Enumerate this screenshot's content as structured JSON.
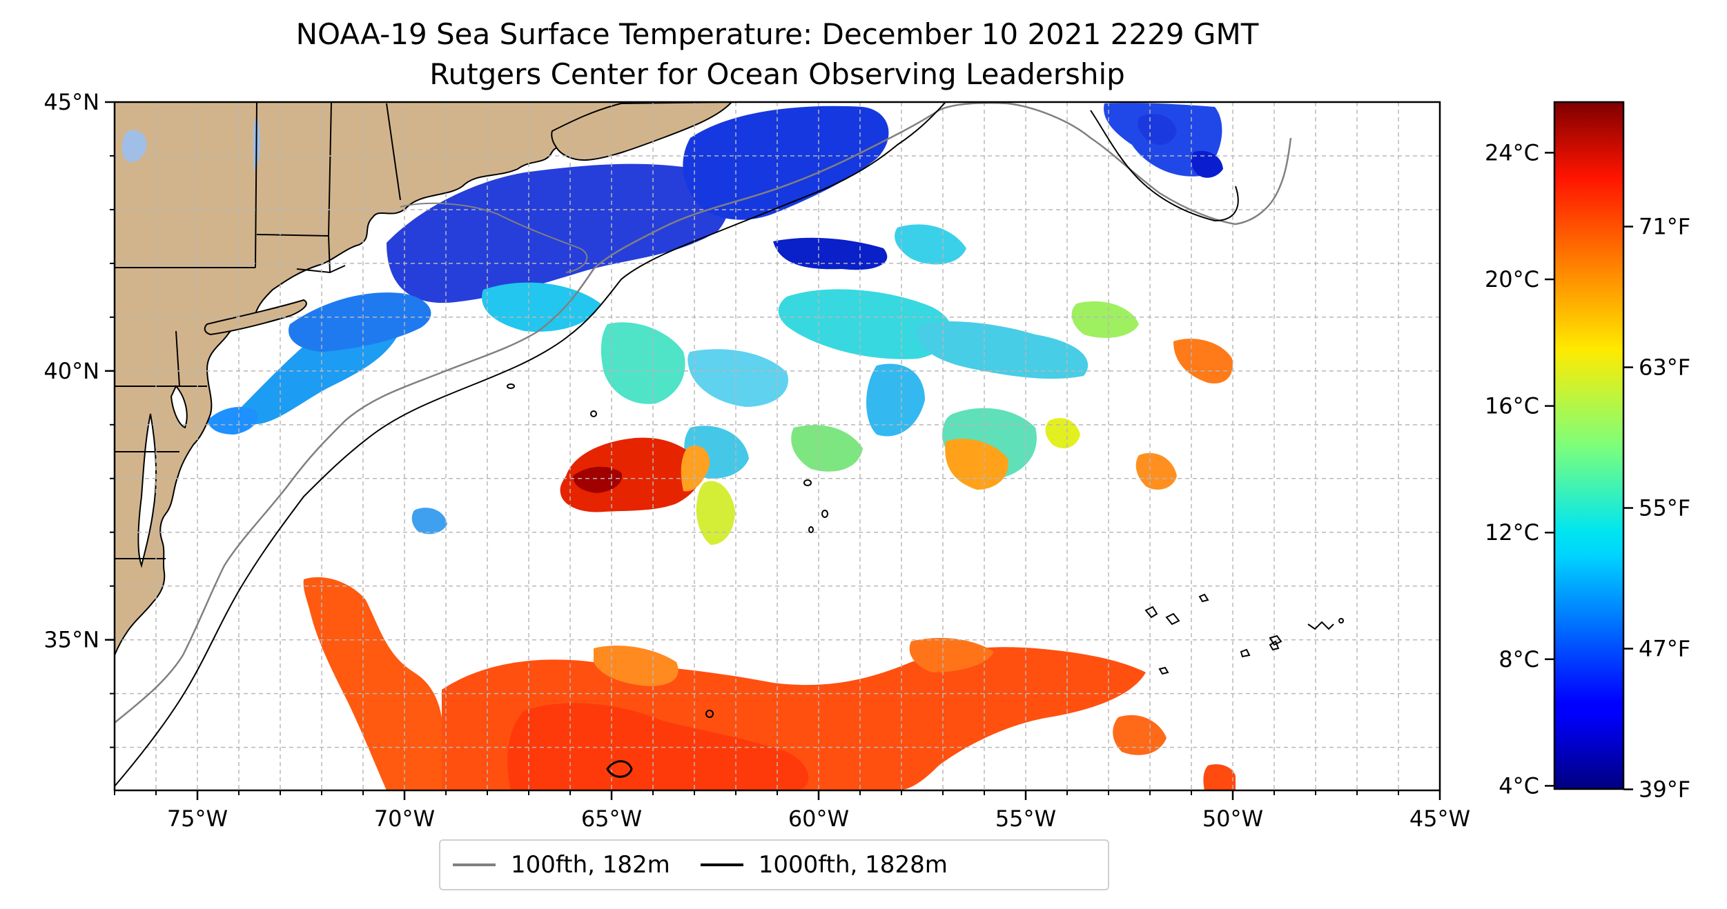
{
  "figure": {
    "title_line1": "NOAA-19 Sea Surface Temperature: December 10 2021 2229 GMT",
    "title_line2": "Rutgers Center for Ocean Observing Leadership"
  },
  "map": {
    "lon_range": [
      -77,
      -45
    ],
    "lat_range": [
      32.2,
      45
    ],
    "land_color": "#d2b48c",
    "lake_color": "#9fbfe8",
    "coast_color": "#000000",
    "grid_color": "#b8b8b8",
    "x_ticks": [
      {
        "value": -75,
        "label": "75°W"
      },
      {
        "value": -70,
        "label": "70°W"
      },
      {
        "value": -65,
        "label": "65°W"
      },
      {
        "value": -60,
        "label": "60°W"
      },
      {
        "value": -55,
        "label": "55°W"
      },
      {
        "value": -50,
        "label": "50°W"
      },
      {
        "value": -45,
        "label": "45°W"
      }
    ],
    "y_ticks": [
      {
        "value": 45,
        "label": "45°N"
      },
      {
        "value": 40,
        "label": "40°N"
      },
      {
        "value": 35,
        "label": "35°N"
      }
    ]
  },
  "legend": {
    "items": [
      {
        "label": "100fth, 182m",
        "color": "#808080"
      },
      {
        "label": "1000fth, 1828m",
        "color": "#000000"
      }
    ]
  },
  "colorbar": {
    "colormap": "jet",
    "range_c": [
      3.9,
      25.6
    ],
    "celsius_ticks": [
      {
        "value": 4,
        "label": "4°C"
      },
      {
        "value": 8,
        "label": "8°C"
      },
      {
        "value": 12,
        "label": "12°C"
      },
      {
        "value": 16,
        "label": "16°C"
      },
      {
        "value": 20,
        "label": "20°C"
      },
      {
        "value": 24,
        "label": "24°C"
      }
    ],
    "fahrenheit_ticks": [
      {
        "value": 39,
        "label": "39°F"
      },
      {
        "value": 47,
        "label": "47°F"
      },
      {
        "value": 55,
        "label": "55°F"
      },
      {
        "value": 63,
        "label": "63°F"
      },
      {
        "value": 71,
        "label": "71°F"
      }
    ]
  }
}
